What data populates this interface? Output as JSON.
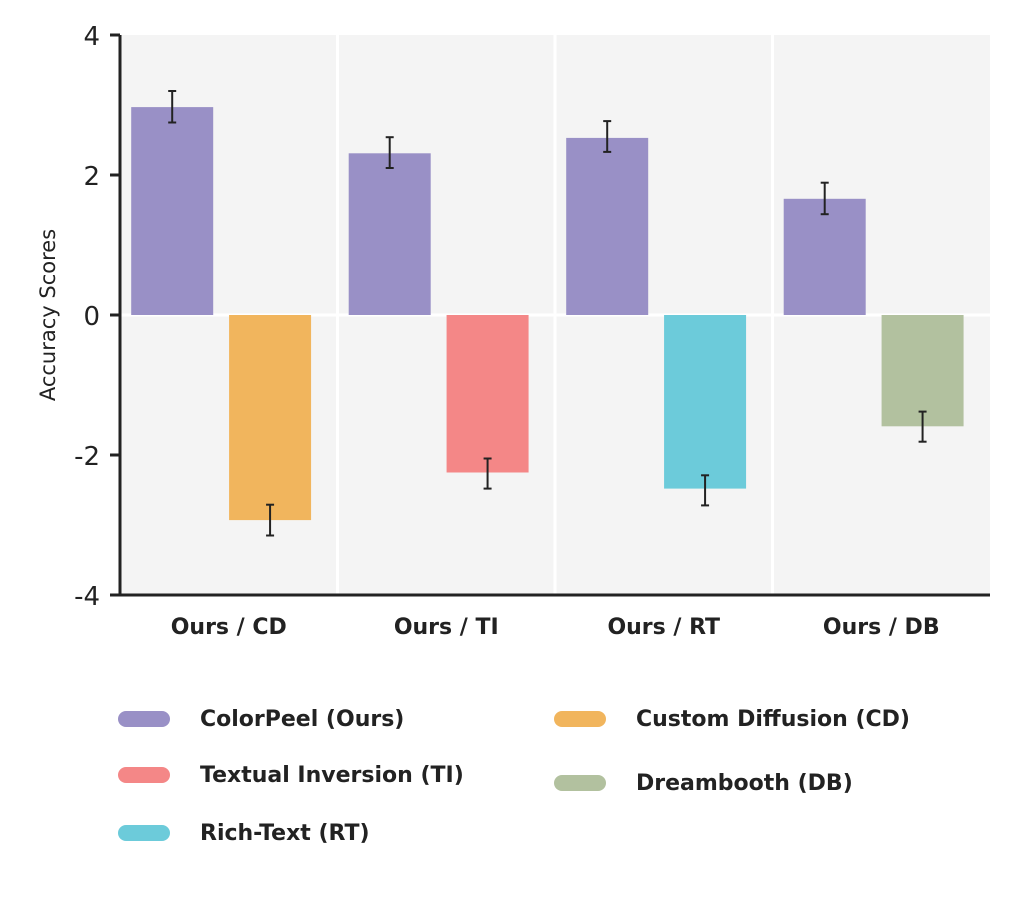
{
  "chart_data": {
    "type": "bar",
    "title": "",
    "xlabel": "",
    "ylabel": "Accuracy Scores",
    "ylim": [
      -4,
      4
    ],
    "yticks": [
      4,
      2,
      0,
      -2,
      -4
    ],
    "grid": "vertical separators between groups, horizontal line at 0",
    "legend_position": "bottom",
    "background": "#f4f4f4",
    "categories": [
      "Ours / CD",
      "Ours / TI",
      "Ours / RT",
      "Ours / DB"
    ],
    "groups": [
      {
        "category": "Ours / CD",
        "bars": [
          {
            "series": "ColorPeel (Ours)",
            "value": 2.97,
            "err_low": 2.75,
            "err_high": 3.2
          },
          {
            "series": "Custom Diffusion (CD)",
            "value": -2.93,
            "err_low": -3.15,
            "err_high": -2.71
          }
        ]
      },
      {
        "category": "Ours / TI",
        "bars": [
          {
            "series": "ColorPeel (Ours)",
            "value": 2.31,
            "err_low": 2.1,
            "err_high": 2.54
          },
          {
            "series": "Textual Inversion (TI)",
            "value": -2.25,
            "err_low": -2.48,
            "err_high": -2.05
          }
        ]
      },
      {
        "category": "Ours / RT",
        "bars": [
          {
            "series": "ColorPeel (Ours)",
            "value": 2.53,
            "err_low": 2.33,
            "err_high": 2.77
          },
          {
            "series": "Rich-Text (RT)",
            "value": -2.48,
            "err_low": -2.72,
            "err_high": -2.29
          }
        ]
      },
      {
        "category": "Ours / DB",
        "bars": [
          {
            "series": "ColorPeel (Ours)",
            "value": 1.66,
            "err_low": 1.44,
            "err_high": 1.89
          },
          {
            "series": "Dreambooth (DB)",
            "value": -1.59,
            "err_low": -1.81,
            "err_high": -1.38
          }
        ]
      }
    ],
    "series": [
      {
        "name": "ColorPeel (Ours)",
        "color": "#9990c6"
      },
      {
        "name": "Custom Diffusion (CD)",
        "color": "#f1b55d"
      },
      {
        "name": "Textual Inversion (TI)",
        "color": "#f48787"
      },
      {
        "name": "Dreambooth (DB)",
        "color": "#b2c19f"
      },
      {
        "name": "Rich-Text (RT)",
        "color": "#6ccbda"
      }
    ]
  },
  "legend": {
    "items": [
      {
        "label": "ColorPeel (Ours)",
        "color": "#9990c6"
      },
      {
        "label": "Custom Diffusion (CD)",
        "color": "#f1b55d"
      },
      {
        "label": "Textual Inversion (TI)",
        "color": "#f48787"
      },
      {
        "label": "Dreambooth (DB)",
        "color": "#b2c19f"
      },
      {
        "label": "Rich-Text (RT)",
        "color": "#6ccbda"
      }
    ]
  }
}
